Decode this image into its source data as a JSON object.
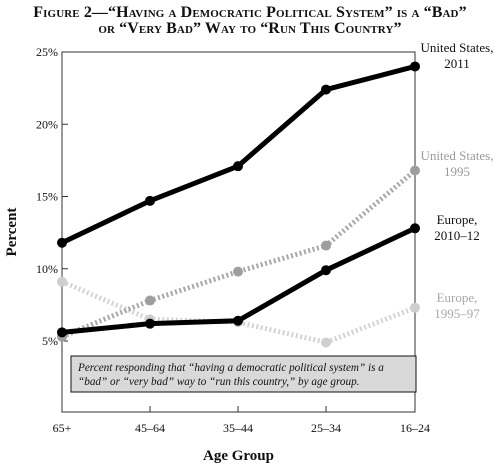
{
  "chart_data": {
    "type": "line",
    "title": "Figure 2—“Having a Democratic Political System” is a “Bad”",
    "subtitle": "or “Very Bad” Way to “Run This Country”",
    "xlabel": "Age Group",
    "ylabel": "Percent",
    "categories": [
      "65+",
      "45–64",
      "35–44",
      "25–34",
      "16–24"
    ],
    "ylim": [
      5,
      25
    ],
    "yticks": [
      "5%",
      "10%",
      "15%",
      "20%",
      "25%"
    ],
    "grid": false,
    "annotation": "Percent responding that “having a democratic political system” is a “bad” or “very bad” way to “run this country,” by age group.",
    "series": [
      {
        "name": "United States, 2011",
        "label_lines": [
          "United States,",
          "2011"
        ],
        "values": [
          11.8,
          14.7,
          17.1,
          22.4,
          24.0
        ],
        "color": "#000000",
        "style": "solid"
      },
      {
        "name": "United States, 1995",
        "label_lines": [
          "United States,",
          "1995"
        ],
        "values": [
          5.3,
          7.8,
          9.8,
          11.6,
          16.8
        ],
        "color": "#a8a8a8",
        "style": "dotted"
      },
      {
        "name": "Europe, 2010–12",
        "label_lines": [
          "Europe,",
          "2010–12"
        ],
        "values": [
          5.6,
          6.2,
          6.4,
          9.9,
          12.8
        ],
        "color": "#000000",
        "style": "solid"
      },
      {
        "name": "Europe, 1995–97",
        "label_lines": [
          "Europe,",
          "1995–97"
        ],
        "values": [
          9.1,
          6.5,
          6.3,
          4.9,
          7.3
        ],
        "color": "#d4d4d4",
        "style": "dotted"
      }
    ]
  }
}
